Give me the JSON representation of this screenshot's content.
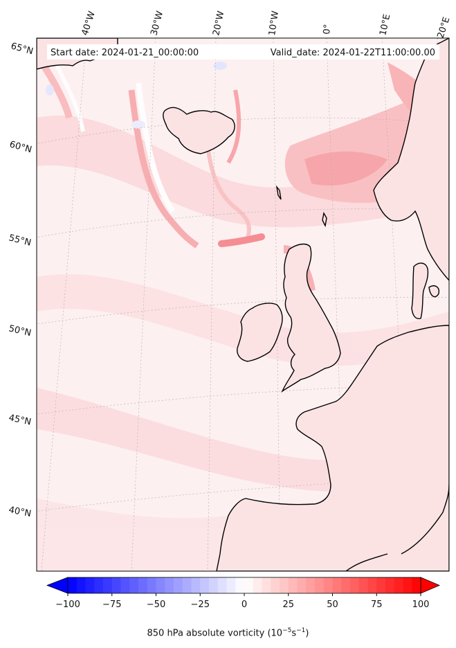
{
  "map": {
    "start_date_label": "Start date: 2024-01-21_00:00:00",
    "valid_date_label": "Valid_date: 2024-01-22T11:00:00.00",
    "lat_labels": [
      "65°N",
      "60°N",
      "55°N",
      "50°N",
      "45°N",
      "40°N"
    ],
    "lon_labels": [
      "40°W",
      "30°W",
      "20°W",
      "10°W",
      "0°",
      "10°E",
      "20°E"
    ],
    "field": "850 hPa absolute vorticity",
    "units_prefix": "850 hPa absolute vorticity (10",
    "units_exp1": "−5",
    "units_mid": "s",
    "units_exp2": "−1",
    "units_suffix": ")"
  },
  "colorbar": {
    "ticks": [
      "−100",
      "−75",
      "−50",
      "−25",
      "0",
      "25",
      "50",
      "75",
      "100"
    ],
    "min": -100,
    "max": 100,
    "step": 5,
    "negative_color": "#0000ff",
    "positive_color": "#ff0000",
    "extend": "both"
  },
  "colors": {
    "coastline": "#000000",
    "grid": "#999999",
    "background_field": "#fde9ea",
    "strong_positive": "#f98a8e",
    "weak_negative": "#eef0ff"
  }
}
